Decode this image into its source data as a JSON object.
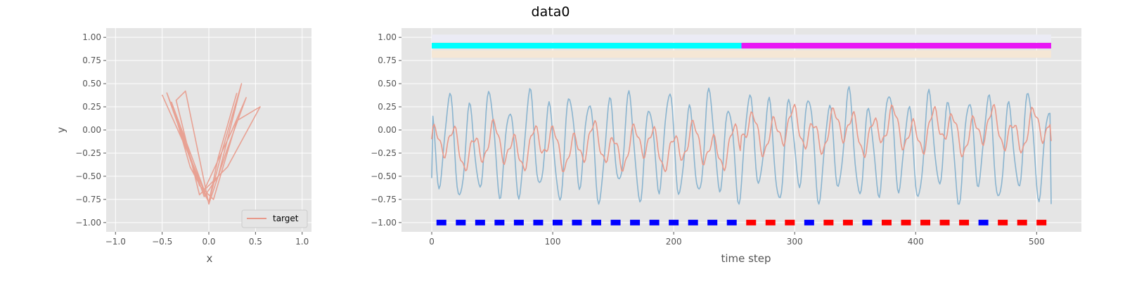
{
  "figure": {
    "title": "data0"
  },
  "colors": {
    "axes_bg": "#e5e5e5",
    "grid": "#ffffff",
    "target": "#e8998a",
    "signal": "#8ab4cf",
    "band_top": "#ebebf5",
    "band_bottom": "#f5e7d5",
    "phase_a": "#00ffff",
    "phase_b": "#e817f5",
    "marker_a": "#0000ff",
    "marker_b": "#ff0000"
  },
  "chart_data": [
    {
      "type": "line",
      "panel": "trajectory",
      "xlabel": "x",
      "ylabel": "y",
      "xlim": [
        -1.1,
        1.1
      ],
      "ylim": [
        -1.1,
        1.1
      ],
      "xticks": [
        -1.0,
        -0.5,
        0.0,
        0.5,
        1.0
      ],
      "xtick_labels": [
        "−1.0",
        "−0.5",
        "0.0",
        "0.5",
        "1.0"
      ],
      "yticks": [
        -1.0,
        -0.75,
        -0.5,
        -0.25,
        0.0,
        0.25,
        0.5,
        0.75,
        1.0
      ],
      "ytick_labels": [
        "−1.00",
        "−0.75",
        "−0.50",
        "−0.25",
        "0.00",
        "0.25",
        "0.50",
        "0.75",
        "1.00"
      ],
      "grid": true,
      "legend": {
        "position": "lower-right",
        "entries": [
          "target"
        ]
      },
      "series": [
        {
          "name": "target",
          "x": [
            -0.5,
            -0.2,
            0.0,
            0.15,
            0.35,
            0.1,
            -0.05,
            -0.3,
            -0.45,
            -0.1,
            0.05,
            0.3,
            0.55,
            0.2,
            -0.1,
            -0.35,
            -0.25,
            0.0,
            0.2,
            0.4,
            0.25,
            -0.05,
            -0.4,
            -0.2,
            0.0,
            0.1,
            0.3
          ],
          "y": [
            0.38,
            -0.3,
            -0.78,
            -0.2,
            0.5,
            -0.5,
            -0.72,
            0.0,
            0.4,
            -0.6,
            -0.75,
            0.1,
            0.25,
            -0.4,
            -0.7,
            0.32,
            0.42,
            -0.8,
            -0.2,
            0.35,
            0.0,
            -0.65,
            0.3,
            -0.4,
            -0.78,
            -0.3,
            0.4
          ]
        }
      ]
    },
    {
      "type": "line",
      "panel": "time-series",
      "xlabel": "time step",
      "ylabel": "",
      "xlim": [
        -25,
        537
      ],
      "ylim": [
        -1.1,
        1.1
      ],
      "xticks": [
        0,
        100,
        200,
        300,
        400,
        500
      ],
      "xtick_labels": [
        "0",
        "100",
        "200",
        "300",
        "400",
        "500"
      ],
      "yticks": [
        -1.0,
        -0.75,
        -0.5,
        -0.25,
        0.0,
        0.25,
        0.5,
        0.75,
        1.0
      ],
      "ytick_labels": [
        "−1.00",
        "−0.75",
        "−0.50",
        "−0.25",
        "0.00",
        "0.25",
        "0.50",
        "0.75",
        "1.00"
      ],
      "grid": true,
      "n_steps": 512,
      "bands": [
        {
          "y_from": 0.95,
          "y_to": 1.03,
          "color": "band_top"
        },
        {
          "y_from": 0.78,
          "y_to": 0.86,
          "color": "band_bottom"
        }
      ],
      "phase_bar": {
        "y": 0.91,
        "segments": [
          {
            "start": 0,
            "end": 256,
            "color": "phase_a"
          },
          {
            "start": 256,
            "end": 512,
            "color": "phase_b"
          }
        ]
      },
      "markers": {
        "y": -1.0,
        "x": [
          8,
          24,
          40,
          56,
          72,
          88,
          104,
          120,
          136,
          152,
          168,
          184,
          200,
          216,
          232,
          248,
          264,
          280,
          296,
          312,
          328,
          344,
          360,
          376,
          392,
          408,
          424,
          440,
          456,
          472,
          488,
          504
        ],
        "colors": [
          "b",
          "b",
          "b",
          "b",
          "b",
          "b",
          "b",
          "b",
          "b",
          "b",
          "b",
          "b",
          "b",
          "b",
          "b",
          "b",
          "r",
          "r",
          "r",
          "b",
          "r",
          "r",
          "b",
          "r",
          "r",
          "r",
          "r",
          "r",
          "b",
          "r",
          "r",
          "r"
        ]
      },
      "series": [
        {
          "name": "signal",
          "period": 16.5,
          "phase_offset": 2.2,
          "amp_mean": -0.18,
          "amp": 0.5,
          "ymin_at": [
            0,
            512
          ],
          "start": -0.52,
          "end": -0.8
        },
        {
          "name": "target",
          "start": -0.1,
          "end": -0.12,
          "approx_range": [
            -0.45,
            0.56
          ]
        }
      ]
    }
  ]
}
